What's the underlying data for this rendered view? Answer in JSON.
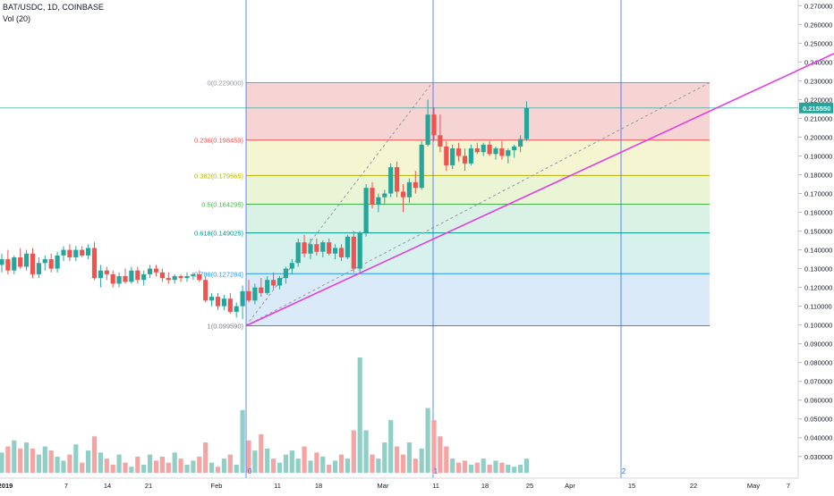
{
  "header": {
    "symbol": "BAT/USDC, 1D, COINBASE",
    "volume_label": "Vol (20)"
  },
  "colors": {
    "up": "#26a69a",
    "down": "#ef5350",
    "up_volume": "#8fcfc6",
    "down_volume": "#f5a3a3",
    "trendline": "#e040e0",
    "vertical_line": "#2962ff",
    "dashed": "#9598a1",
    "last_price": "#26a69a"
  },
  "price_axis": {
    "ticks": [
      "0.270000",
      "0.260000",
      "0.250000",
      "0.240000",
      "0.230000",
      "0.220000",
      "0.210000",
      "0.200000",
      "0.190000",
      "0.180000",
      "0.170000",
      "0.160000",
      "0.150000",
      "0.140000",
      "0.130000",
      "0.120000",
      "0.110000",
      "0.100000",
      "0.090000",
      "0.080000",
      "0.070000",
      "0.060000",
      "0.050000",
      "0.040000",
      "0.030000"
    ],
    "last_price_label": "0.215550"
  },
  "time_axis": {
    "labels": [
      "2019",
      "7",
      "14",
      "21",
      "Feb",
      "11",
      "18",
      "Mar",
      "11",
      "18",
      "25",
      "Apr",
      "15",
      "22",
      "May",
      "7"
    ],
    "markers": [
      "0",
      "1",
      "2"
    ]
  },
  "fib_levels": [
    {
      "label": "0(0.229000)",
      "color": "#9598a1"
    },
    {
      "label": "0.236(0.198459)",
      "color": "#ef5350"
    },
    {
      "label": "0.382(0.179565)",
      "color": "#b8b400"
    },
    {
      "label": "0.5(0.164295)",
      "color": "#4caf50"
    },
    {
      "label": "0.618(0.149025)",
      "color": "#009688"
    },
    {
      "label": "0.786(0.127284)",
      "color": "#2196f3"
    },
    {
      "label": "1(0.099590)",
      "color": "#787b86"
    }
  ],
  "chart_data": {
    "type": "candlestick",
    "symbol": "BAT/USDC",
    "interval": "1D",
    "exchange": "COINBASE",
    "x_start": "2019-01-01",
    "price_range": [
      0.03,
      0.27
    ],
    "last_price": 0.21555,
    "ohlc": [
      [
        0.132,
        0.138,
        0.128,
        0.135
      ],
      [
        0.135,
        0.14,
        0.127,
        0.129
      ],
      [
        0.129,
        0.137,
        0.127,
        0.136
      ],
      [
        0.136,
        0.141,
        0.13,
        0.131
      ],
      [
        0.131,
        0.14,
        0.129,
        0.138
      ],
      [
        0.138,
        0.141,
        0.125,
        0.127
      ],
      [
        0.127,
        0.136,
        0.125,
        0.133
      ],
      [
        0.133,
        0.137,
        0.129,
        0.135
      ],
      [
        0.135,
        0.138,
        0.128,
        0.13
      ],
      [
        0.13,
        0.139,
        0.128,
        0.137
      ],
      [
        0.137,
        0.142,
        0.134,
        0.14
      ],
      [
        0.14,
        0.143,
        0.134,
        0.136
      ],
      [
        0.136,
        0.142,
        0.134,
        0.14
      ],
      [
        0.14,
        0.142,
        0.136,
        0.137
      ],
      [
        0.137,
        0.143,
        0.135,
        0.141
      ],
      [
        0.141,
        0.144,
        0.124,
        0.125
      ],
      [
        0.125,
        0.132,
        0.12,
        0.129
      ],
      [
        0.129,
        0.131,
        0.124,
        0.127
      ],
      [
        0.127,
        0.129,
        0.12,
        0.122
      ],
      [
        0.122,
        0.128,
        0.12,
        0.126
      ],
      [
        0.126,
        0.13,
        0.122,
        0.123
      ],
      [
        0.123,
        0.131,
        0.122,
        0.129
      ],
      [
        0.129,
        0.131,
        0.122,
        0.124
      ],
      [
        0.124,
        0.129,
        0.121,
        0.127
      ],
      [
        0.127,
        0.132,
        0.125,
        0.13
      ],
      [
        0.13,
        0.132,
        0.126,
        0.128
      ],
      [
        0.128,
        0.13,
        0.123,
        0.125
      ],
      [
        0.125,
        0.128,
        0.122,
        0.124
      ],
      [
        0.124,
        0.127,
        0.122,
        0.126
      ],
      [
        0.126,
        0.127,
        0.123,
        0.125
      ],
      [
        0.125,
        0.128,
        0.123,
        0.126
      ],
      [
        0.126,
        0.128,
        0.124,
        0.127
      ],
      [
        0.127,
        0.129,
        0.123,
        0.124
      ],
      [
        0.124,
        0.126,
        0.112,
        0.113
      ],
      [
        0.113,
        0.117,
        0.11,
        0.115
      ],
      [
        0.115,
        0.117,
        0.108,
        0.11
      ],
      [
        0.11,
        0.116,
        0.108,
        0.114
      ],
      [
        0.114,
        0.117,
        0.106,
        0.107
      ],
      [
        0.107,
        0.112,
        0.104,
        0.11
      ],
      [
        0.11,
        0.121,
        0.103,
        0.118
      ],
      [
        0.118,
        0.124,
        0.112,
        0.113
      ],
      [
        0.113,
        0.122,
        0.111,
        0.12
      ],
      [
        0.12,
        0.125,
        0.115,
        0.117
      ],
      [
        0.117,
        0.126,
        0.116,
        0.124
      ],
      [
        0.124,
        0.128,
        0.119,
        0.121
      ],
      [
        0.121,
        0.126,
        0.119,
        0.125
      ],
      [
        0.125,
        0.131,
        0.122,
        0.13
      ],
      [
        0.13,
        0.135,
        0.127,
        0.133
      ],
      [
        0.133,
        0.146,
        0.131,
        0.144
      ],
      [
        0.144,
        0.148,
        0.136,
        0.138
      ],
      [
        0.138,
        0.146,
        0.135,
        0.143
      ],
      [
        0.143,
        0.146,
        0.137,
        0.139
      ],
      [
        0.139,
        0.145,
        0.136,
        0.144
      ],
      [
        0.144,
        0.146,
        0.137,
        0.138
      ],
      [
        0.138,
        0.143,
        0.135,
        0.141
      ],
      [
        0.141,
        0.143,
        0.134,
        0.136
      ],
      [
        0.136,
        0.148,
        0.135,
        0.147
      ],
      [
        0.147,
        0.15,
        0.128,
        0.13
      ],
      [
        0.13,
        0.15,
        0.128,
        0.149
      ],
      [
        0.149,
        0.175,
        0.147,
        0.173
      ],
      [
        0.173,
        0.176,
        0.162,
        0.164
      ],
      [
        0.164,
        0.17,
        0.16,
        0.168
      ],
      [
        0.168,
        0.172,
        0.164,
        0.17
      ],
      [
        0.17,
        0.186,
        0.168,
        0.184
      ],
      [
        0.184,
        0.187,
        0.168,
        0.171
      ],
      [
        0.171,
        0.175,
        0.16,
        0.168
      ],
      [
        0.168,
        0.178,
        0.165,
        0.176
      ],
      [
        0.176,
        0.182,
        0.17,
        0.173
      ],
      [
        0.173,
        0.198,
        0.172,
        0.196
      ],
      [
        0.196,
        0.22,
        0.195,
        0.212
      ],
      [
        0.212,
        0.216,
        0.198,
        0.201
      ],
      [
        0.201,
        0.212,
        0.192,
        0.195
      ],
      [
        0.195,
        0.198,
        0.182,
        0.185
      ],
      [
        0.185,
        0.196,
        0.183,
        0.194
      ],
      [
        0.194,
        0.197,
        0.187,
        0.19
      ],
      [
        0.19,
        0.194,
        0.182,
        0.186
      ],
      [
        0.186,
        0.196,
        0.185,
        0.194
      ],
      [
        0.194,
        0.197,
        0.191,
        0.192
      ],
      [
        0.192,
        0.197,
        0.19,
        0.196
      ],
      [
        0.196,
        0.198,
        0.19,
        0.191
      ],
      [
        0.191,
        0.195,
        0.188,
        0.194
      ],
      [
        0.194,
        0.198,
        0.188,
        0.19
      ],
      [
        0.19,
        0.194,
        0.186,
        0.193
      ],
      [
        0.193,
        0.196,
        0.189,
        0.195
      ],
      [
        0.195,
        0.201,
        0.192,
        0.199
      ],
      [
        0.199,
        0.219,
        0.198,
        0.2155
      ]
    ],
    "volume": [
      0.037,
      0.04,
      0.043,
      0.039,
      0.042,
      0.039,
      0.036,
      0.04,
      0.038,
      0.035,
      0.033,
      0.036,
      0.041,
      0.032,
      0.038,
      0.045,
      0.037,
      0.034,
      0.031,
      0.036,
      0.032,
      0.03,
      0.035,
      0.031,
      0.036,
      0.033,
      0.035,
      0.032,
      0.037,
      0.034,
      0.031,
      0.033,
      0.035,
      0.042,
      0.032,
      0.03,
      0.034,
      0.036,
      0.031,
      0.058,
      0.043,
      0.038,
      0.046,
      0.039,
      0.034,
      0.032,
      0.036,
      0.038,
      0.034,
      0.04,
      0.033,
      0.037,
      0.035,
      0.031,
      0.033,
      0.036,
      0.034,
      0.048,
      0.084,
      0.048,
      0.036,
      0.034,
      0.042,
      0.053,
      0.04,
      0.036,
      0.042,
      0.034,
      0.039,
      0.059,
      0.053,
      0.045,
      0.04,
      0.034,
      0.032,
      0.033,
      0.031,
      0.032,
      0.034,
      0.031,
      0.033,
      0.032,
      0.031,
      0.03,
      0.031,
      0.034
    ],
    "fibonacci": {
      "levels": [
        0,
        0.236,
        0.382,
        0.5,
        0.618,
        0.786,
        1
      ],
      "prices": [
        0.229,
        0.198459,
        0.179565,
        0.164295,
        0.149025,
        0.127284,
        0.09959
      ]
    }
  }
}
